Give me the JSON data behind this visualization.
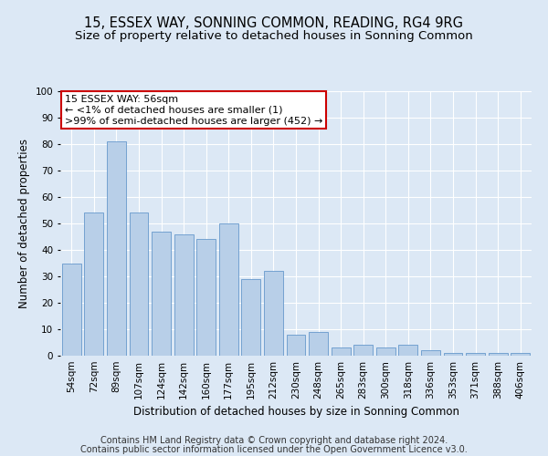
{
  "title": "15, ESSEX WAY, SONNING COMMON, READING, RG4 9RG",
  "subtitle": "Size of property relative to detached houses in Sonning Common",
  "xlabel": "Distribution of detached houses by size in Sonning Common",
  "ylabel": "Number of detached properties",
  "categories": [
    "54sqm",
    "72sqm",
    "89sqm",
    "107sqm",
    "124sqm",
    "142sqm",
    "160sqm",
    "177sqm",
    "195sqm",
    "212sqm",
    "230sqm",
    "248sqm",
    "265sqm",
    "283sqm",
    "300sqm",
    "318sqm",
    "336sqm",
    "353sqm",
    "371sqm",
    "388sqm",
    "406sqm"
  ],
  "values": [
    35,
    54,
    81,
    54,
    47,
    46,
    44,
    50,
    29,
    32,
    8,
    9,
    3,
    4,
    3,
    4,
    2,
    1,
    1,
    1,
    1
  ],
  "bar_color": "#b8cfe8",
  "bar_edge_color": "#6699cc",
  "annotation_text": "15 ESSEX WAY: 56sqm\n← <1% of detached houses are smaller (1)\n>99% of semi-detached houses are larger (452) →",
  "annotation_box_color": "#ffffff",
  "annotation_box_edge_color": "#cc0000",
  "footer_line1": "Contains HM Land Registry data © Crown copyright and database right 2024.",
  "footer_line2": "Contains public sector information licensed under the Open Government Licence v3.0.",
  "ylim": [
    0,
    100
  ],
  "yticks": [
    0,
    10,
    20,
    30,
    40,
    50,
    60,
    70,
    80,
    90,
    100
  ],
  "background_color": "#dce8f5",
  "grid_color": "#ffffff",
  "title_fontsize": 10.5,
  "subtitle_fontsize": 9.5,
  "axis_label_fontsize": 8.5,
  "tick_fontsize": 7.5,
  "annotation_fontsize": 8,
  "footer_fontsize": 7
}
